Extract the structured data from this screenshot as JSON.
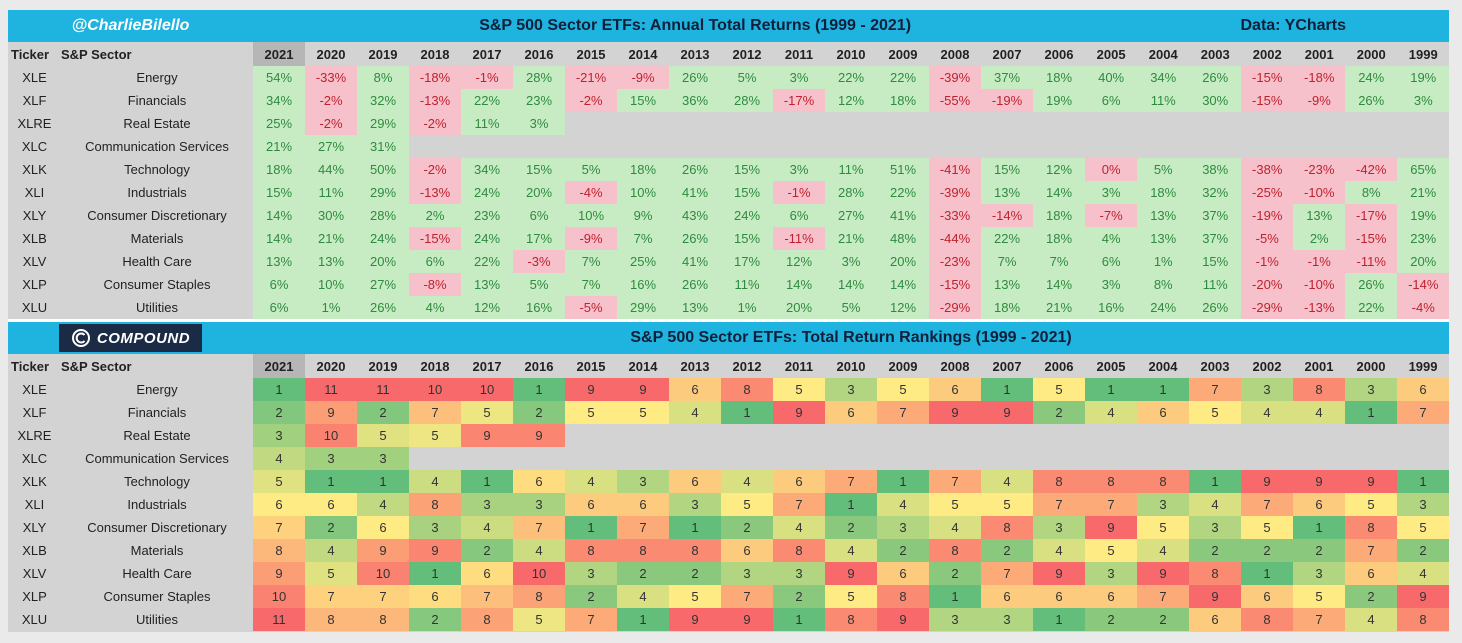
{
  "top": {
    "handle": "@CharlieBilello",
    "title": "S&P 500 Sector ETFs: Annual Total Returns (1999 - 2021)",
    "source": "Data: YCharts"
  },
  "bottom": {
    "brand": "COMPOUND",
    "title": "S&P 500 Sector ETFs: Total Return Rankings (1999 - 2021)"
  },
  "headers": {
    "ticker": "Ticker",
    "sector": "S&P Sector",
    "years": [
      "2021",
      "2020",
      "2019",
      "2018",
      "2017",
      "2016",
      "2015",
      "2014",
      "2013",
      "2012",
      "2011",
      "2010",
      "2009",
      "2008",
      "2007",
      "2006",
      "2005",
      "2004",
      "2003",
      "2002",
      "2001",
      "2000",
      "1999"
    ]
  },
  "colors": {
    "banner": "#1fb3e0",
    "positive_bg": "#c7ecc4",
    "positive_text": "#2f8a3f",
    "negative_bg": "#f6c1cb",
    "negative_text": "#c0212f",
    "rank_best": "#63be7b",
    "rank_mid": "#ffeb84",
    "rank_worst": "#f8696b"
  },
  "chart_data": [
    {
      "type": "table",
      "title": "S&P 500 Sector ETFs: Annual Total Returns (1999 - 2021)",
      "columns": [
        "2021",
        "2020",
        "2019",
        "2018",
        "2017",
        "2016",
        "2015",
        "2014",
        "2013",
        "2012",
        "2011",
        "2010",
        "2009",
        "2008",
        "2007",
        "2006",
        "2005",
        "2004",
        "2003",
        "2002",
        "2001",
        "2000",
        "1999"
      ],
      "rows": [
        {
          "ticker": "XLE",
          "sector": "Energy",
          "values": [
            "54%",
            "-33%",
            "8%",
            "-18%",
            "-1%",
            "28%",
            "-21%",
            "-9%",
            "26%",
            "5%",
            "3%",
            "22%",
            "22%",
            "-39%",
            "37%",
            "18%",
            "40%",
            "34%",
            "26%",
            "-15%",
            "-18%",
            "24%",
            "19%"
          ]
        },
        {
          "ticker": "XLF",
          "sector": "Financials",
          "values": [
            "34%",
            "-2%",
            "32%",
            "-13%",
            "22%",
            "23%",
            "-2%",
            "15%",
            "36%",
            "28%",
            "-17%",
            "12%",
            "18%",
            "-55%",
            "-19%",
            "19%",
            "6%",
            "11%",
            "30%",
            "-15%",
            "-9%",
            "26%",
            "3%"
          ]
        },
        {
          "ticker": "XLRE",
          "sector": "Real Estate",
          "values": [
            "25%",
            "-2%",
            "29%",
            "-2%",
            "11%",
            "3%",
            "",
            "",
            "",
            "",
            "",
            "",
            "",
            "",
            "",
            "",
            "",
            "",
            "",
            "",
            "",
            "",
            ""
          ]
        },
        {
          "ticker": "XLC",
          "sector": "Communication Services",
          "values": [
            "21%",
            "27%",
            "31%",
            "",
            "",
            "",
            "",
            "",
            "",
            "",
            "",
            "",
            "",
            "",
            "",
            "",
            "",
            "",
            "",
            "",
            "",
            "",
            ""
          ]
        },
        {
          "ticker": "XLK",
          "sector": "Technology",
          "values": [
            "18%",
            "44%",
            "50%",
            "-2%",
            "34%",
            "15%",
            "5%",
            "18%",
            "26%",
            "15%",
            "3%",
            "11%",
            "51%",
            "-41%",
            "15%",
            "12%",
            "0%",
            "5%",
            "38%",
            "-38%",
            "-23%",
            "-42%",
            "65%"
          ]
        },
        {
          "ticker": "XLI",
          "sector": "Industrials",
          "values": [
            "15%",
            "11%",
            "29%",
            "-13%",
            "24%",
            "20%",
            "-4%",
            "10%",
            "41%",
            "15%",
            "-1%",
            "28%",
            "22%",
            "-39%",
            "13%",
            "14%",
            "3%",
            "18%",
            "32%",
            "-25%",
            "-10%",
            "8%",
            "21%"
          ]
        },
        {
          "ticker": "XLY",
          "sector": "Consumer Discretionary",
          "values": [
            "14%",
            "30%",
            "28%",
            "2%",
            "23%",
            "6%",
            "10%",
            "9%",
            "43%",
            "24%",
            "6%",
            "27%",
            "41%",
            "-33%",
            "-14%",
            "18%",
            "-7%",
            "13%",
            "37%",
            "-19%",
            "13%",
            "-17%",
            "19%"
          ]
        },
        {
          "ticker": "XLB",
          "sector": "Materials",
          "values": [
            "14%",
            "21%",
            "24%",
            "-15%",
            "24%",
            "17%",
            "-9%",
            "7%",
            "26%",
            "15%",
            "-11%",
            "21%",
            "48%",
            "-44%",
            "22%",
            "18%",
            "4%",
            "13%",
            "37%",
            "-5%",
            "2%",
            "-15%",
            "23%"
          ]
        },
        {
          "ticker": "XLV",
          "sector": "Health Care",
          "values": [
            "13%",
            "13%",
            "20%",
            "6%",
            "22%",
            "-3%",
            "7%",
            "25%",
            "41%",
            "17%",
            "12%",
            "3%",
            "20%",
            "-23%",
            "7%",
            "7%",
            "6%",
            "1%",
            "15%",
            "-1%",
            "-1%",
            "-11%",
            "20%"
          ]
        },
        {
          "ticker": "XLP",
          "sector": "Consumer Staples",
          "values": [
            "6%",
            "10%",
            "27%",
            "-8%",
            "13%",
            "5%",
            "7%",
            "16%",
            "26%",
            "11%",
            "14%",
            "14%",
            "14%",
            "-15%",
            "13%",
            "14%",
            "3%",
            "8%",
            "11%",
            "-20%",
            "-10%",
            "26%",
            "-14%"
          ]
        },
        {
          "ticker": "XLU",
          "sector": "Utilities",
          "values": [
            "6%",
            "1%",
            "26%",
            "4%",
            "12%",
            "16%",
            "-5%",
            "29%",
            "13%",
            "1%",
            "20%",
            "5%",
            "12%",
            "-29%",
            "18%",
            "21%",
            "16%",
            "24%",
            "26%",
            "-29%",
            "-13%",
            "22%",
            "-4%"
          ]
        }
      ]
    },
    {
      "type": "heatmap",
      "title": "S&P 500 Sector ETFs: Total Return Rankings (1999 - 2021)",
      "columns": [
        "2021",
        "2020",
        "2019",
        "2018",
        "2017",
        "2016",
        "2015",
        "2014",
        "2013",
        "2012",
        "2011",
        "2010",
        "2009",
        "2008",
        "2007",
        "2006",
        "2005",
        "2004",
        "2003",
        "2002",
        "2001",
        "2000",
        "1999"
      ],
      "rows": [
        {
          "ticker": "XLE",
          "sector": "Energy",
          "values": [
            "1",
            "11",
            "11",
            "10",
            "10",
            "1",
            "9",
            "9",
            "6",
            "8",
            "5",
            "3",
            "5",
            "6",
            "1",
            "5",
            "1",
            "1",
            "7",
            "3",
            "8",
            "3",
            "6"
          ]
        },
        {
          "ticker": "XLF",
          "sector": "Financials",
          "values": [
            "2",
            "9",
            "2",
            "7",
            "5",
            "2",
            "5",
            "5",
            "4",
            "1",
            "9",
            "6",
            "7",
            "9",
            "9",
            "2",
            "4",
            "6",
            "5",
            "4",
            "4",
            "1",
            "7"
          ]
        },
        {
          "ticker": "XLRE",
          "sector": "Real Estate",
          "values": [
            "3",
            "10",
            "5",
            "5",
            "9",
            "9",
            "",
            "",
            "",
            "",
            "",
            "",
            "",
            "",
            "",
            "",
            "",
            "",
            "",
            "",
            "",
            "",
            ""
          ]
        },
        {
          "ticker": "XLC",
          "sector": "Communication Services",
          "values": [
            "4",
            "3",
            "3",
            "",
            "",
            "",
            "",
            "",
            "",
            "",
            "",
            "",
            "",
            "",
            "",
            "",
            "",
            "",
            "",
            "",
            "",
            "",
            ""
          ]
        },
        {
          "ticker": "XLK",
          "sector": "Technology",
          "values": [
            "5",
            "1",
            "1",
            "4",
            "1",
            "6",
            "4",
            "3",
            "6",
            "4",
            "6",
            "7",
            "1",
            "7",
            "4",
            "8",
            "8",
            "8",
            "1",
            "9",
            "9",
            "9",
            "1"
          ]
        },
        {
          "ticker": "XLI",
          "sector": "Industrials",
          "values": [
            "6",
            "6",
            "4",
            "8",
            "3",
            "3",
            "6",
            "6",
            "3",
            "5",
            "7",
            "1",
            "4",
            "5",
            "5",
            "7",
            "7",
            "3",
            "4",
            "7",
            "6",
            "5",
            "3"
          ]
        },
        {
          "ticker": "XLY",
          "sector": "Consumer Discretionary",
          "values": [
            "7",
            "2",
            "6",
            "3",
            "4",
            "7",
            "1",
            "7",
            "1",
            "2",
            "4",
            "2",
            "3",
            "4",
            "8",
            "3",
            "9",
            "5",
            "3",
            "5",
            "1",
            "8",
            "5"
          ]
        },
        {
          "ticker": "XLB",
          "sector": "Materials",
          "values": [
            "8",
            "4",
            "9",
            "9",
            "2",
            "4",
            "8",
            "8",
            "8",
            "6",
            "8",
            "4",
            "2",
            "8",
            "2",
            "4",
            "5",
            "4",
            "2",
            "2",
            "2",
            "7",
            "2"
          ]
        },
        {
          "ticker": "XLV",
          "sector": "Health Care",
          "values": [
            "9",
            "5",
            "10",
            "1",
            "6",
            "10",
            "3",
            "2",
            "2",
            "3",
            "3",
            "9",
            "6",
            "2",
            "7",
            "9",
            "3",
            "9",
            "8",
            "1",
            "3",
            "6",
            "4"
          ]
        },
        {
          "ticker": "XLP",
          "sector": "Consumer Staples",
          "values": [
            "10",
            "7",
            "7",
            "6",
            "7",
            "8",
            "2",
            "4",
            "5",
            "7",
            "2",
            "5",
            "8",
            "1",
            "6",
            "6",
            "6",
            "7",
            "9",
            "6",
            "5",
            "2",
            "9"
          ]
        },
        {
          "ticker": "XLU",
          "sector": "Utilities",
          "values": [
            "11",
            "8",
            "8",
            "2",
            "8",
            "5",
            "7",
            "1",
            "9",
            "9",
            "1",
            "8",
            "9",
            "3",
            "3",
            "1",
            "2",
            "2",
            "6",
            "8",
            "7",
            "4",
            "8"
          ]
        }
      ]
    }
  ]
}
